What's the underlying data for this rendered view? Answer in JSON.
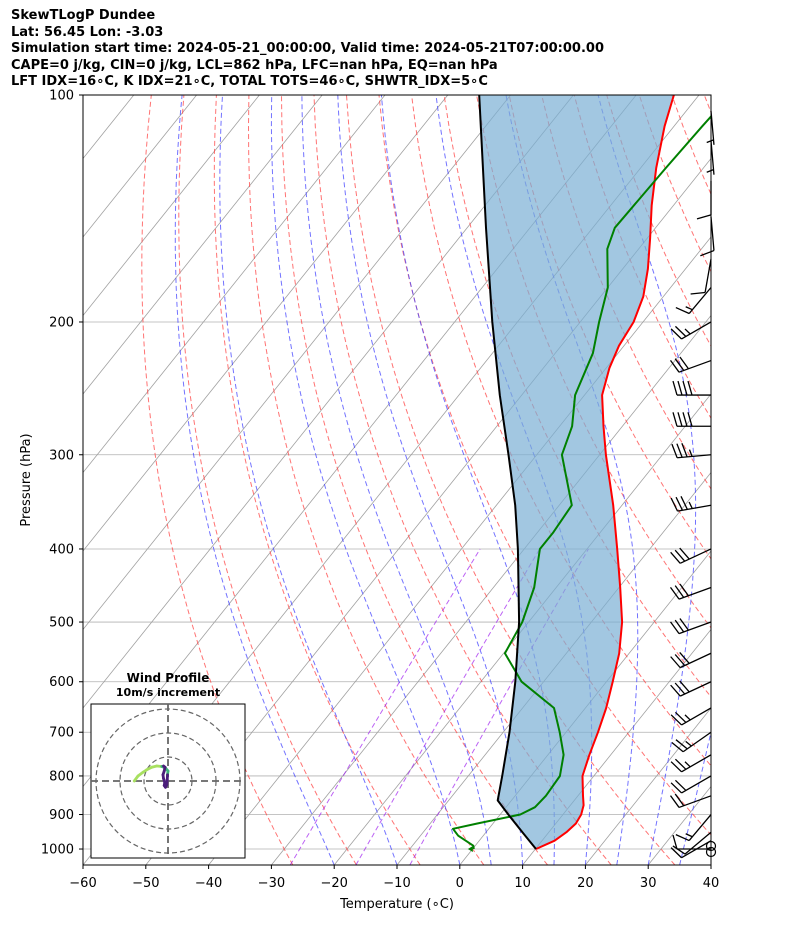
{
  "header": {
    "line1": "SkewTLogP Dundee",
    "line2": "Lat: 56.45   Lon: -3.03",
    "line3": "Simulation start time: 2024-05-21_00:00:00, Valid time: 2024-05-21T07:00:00.00",
    "line4": "CAPE=0 j/kg, CIN=0 j/kg, LCL=862 hPa, LFC=nan hPa, EQ=nan hPa",
    "line5": "LFT IDX=16∘C, K IDX=21∘C, TOTAL TOTS=46∘C, SHWTR_IDX=5∘C"
  },
  "chart_data": [
    {
      "type": "line",
      "subtype": "skew-T log-P",
      "xlabel": "Temperature (∘C)",
      "ylabel": "Pressure (hPa)",
      "xlim": [
        -60,
        40
      ],
      "ylim": [
        1050,
        100
      ],
      "y_scale": "log",
      "grid": true,
      "x_ticks": [
        -60,
        -50,
        -40,
        -30,
        -20,
        -10,
        0,
        10,
        20,
        30,
        40
      ],
      "y_ticks": [
        1000,
        900,
        800,
        700,
        600,
        500,
        400,
        300,
        200,
        100
      ],
      "colors": {
        "temperature": "#ff0000",
        "dewpoint": "#008000",
        "parcel": "#000000",
        "cape_fill": "#7bafd4",
        "dry_adiabats": "#ff4444",
        "moist_adiabats": "#4444ff",
        "mixing_ratio": "#a020f0",
        "isotherms": "#999999"
      },
      "series": [
        {
          "role": "temperature",
          "points": [
            [
              1000,
              10.1
            ],
            [
              975,
              12.0
            ],
            [
              950,
              12.8
            ],
            [
              925,
              13.2
            ],
            [
              900,
              12.9
            ],
            [
              875,
              12.1
            ],
            [
              850,
              10.8
            ],
            [
              800,
              8.2
            ],
            [
              750,
              6.6
            ],
            [
              700,
              5.1
            ],
            [
              650,
              3.3
            ],
            [
              600,
              1.0
            ],
            [
              550,
              -1.6
            ],
            [
              500,
              -5.1
            ],
            [
              450,
              -9.8
            ],
            [
              400,
              -15.2
            ],
            [
              350,
              -21.4
            ],
            [
              300,
              -29.0
            ],
            [
              275,
              -33.0
            ],
            [
              250,
              -37.2
            ],
            [
              230,
              -39.5
            ],
            [
              215,
              -40.8
            ],
            [
              200,
              -41.5
            ],
            [
              185,
              -43.2
            ],
            [
              170,
              -46.0
            ],
            [
              155,
              -49.5
            ],
            [
              140,
              -53.5
            ],
            [
              125,
              -57.5
            ],
            [
              110,
              -61.5
            ],
            [
              100,
              -64.0
            ]
          ]
        },
        {
          "role": "dewpoint",
          "points": [
            [
              1000,
              0.2
            ],
            [
              990,
              -0.3
            ],
            [
              960,
              -4.0
            ],
            [
              940,
              -5.7
            ],
            [
              925,
              -2.5
            ],
            [
              900,
              3.2
            ],
            [
              880,
              4.6
            ],
            [
              850,
              4.9
            ],
            [
              800,
              4.6
            ],
            [
              750,
              2.5
            ],
            [
              700,
              -1.0
            ],
            [
              650,
              -5.0
            ],
            [
              600,
              -13.5
            ],
            [
              550,
              -19.8
            ],
            [
              500,
              -21.0
            ],
            [
              450,
              -23.5
            ],
            [
              400,
              -27.5
            ],
            [
              380,
              -27.5
            ],
            [
              350,
              -28.0
            ],
            [
              300,
              -36.0
            ],
            [
              275,
              -38.0
            ],
            [
              250,
              -41.5
            ],
            [
              220,
              -44.0
            ],
            [
              200,
              -47.0
            ],
            [
              180,
              -50.0
            ],
            [
              160,
              -55.0
            ],
            [
              150,
              -56.5
            ],
            [
              125,
              -56.0
            ],
            [
              110,
              -55.5
            ],
            [
              100,
              -55.0
            ]
          ]
        },
        {
          "role": "parcel",
          "points": [
            [
              1000,
              10.1
            ],
            [
              950,
              5.8
            ],
            [
              900,
              1.3
            ],
            [
              862,
              -2.2
            ],
            [
              800,
              -4.6
            ],
            [
              700,
              -9.0
            ],
            [
              600,
              -14.5
            ],
            [
              500,
              -21.5
            ],
            [
              400,
              -31.0
            ],
            [
              350,
              -37.0
            ],
            [
              300,
              -44.5
            ],
            [
              250,
              -53.5
            ],
            [
              200,
              -64.0
            ],
            [
              150,
              -77.0
            ],
            [
              100,
              -95.0
            ]
          ]
        }
      ],
      "wind_barbs": [
        {
          "p": 1000,
          "speed_kt": 10,
          "dir": 270
        },
        {
          "p": 975,
          "speed_kt": 10,
          "dir": 240
        },
        {
          "p": 950,
          "speed_kt": 10,
          "dir": 230
        },
        {
          "p": 900,
          "speed_kt": 15,
          "dir": 220
        },
        {
          "p": 850,
          "speed_kt": 20,
          "dir": 250
        },
        {
          "p": 800,
          "speed_kt": 20,
          "dir": 240
        },
        {
          "p": 750,
          "speed_kt": 25,
          "dir": 240
        },
        {
          "p": 700,
          "speed_kt": 25,
          "dir": 235
        },
        {
          "p": 650,
          "speed_kt": 25,
          "dir": 240
        },
        {
          "p": 600,
          "speed_kt": 30,
          "dir": 245
        },
        {
          "p": 550,
          "speed_kt": 30,
          "dir": 245
        },
        {
          "p": 500,
          "speed_kt": 30,
          "dir": 250
        },
        {
          "p": 450,
          "speed_kt": 30,
          "dir": 250
        },
        {
          "p": 400,
          "speed_kt": 30,
          "dir": 245
        },
        {
          "p": 350,
          "speed_kt": 35,
          "dir": 260
        },
        {
          "p": 300,
          "speed_kt": 35,
          "dir": 265
        },
        {
          "p": 275,
          "speed_kt": 40,
          "dir": 270
        },
        {
          "p": 250,
          "speed_kt": 40,
          "dir": 270
        },
        {
          "p": 225,
          "speed_kt": 30,
          "dir": 250
        },
        {
          "p": 200,
          "speed_kt": 25,
          "dir": 240
        },
        {
          "p": 180,
          "speed_kt": 15,
          "dir": 220
        },
        {
          "p": 165,
          "speed_kt": 10,
          "dir": 190
        },
        {
          "p": 145,
          "speed_kt": 10,
          "dir": 175
        },
        {
          "p": 130,
          "speed_kt": 10,
          "dir": 180
        },
        {
          "p": 115,
          "speed_kt": 5,
          "dir": 175
        },
        {
          "p": 105,
          "speed_kt": 5,
          "dir": 175
        }
      ]
    },
    {
      "type": "line",
      "subtype": "hodograph",
      "title": "Wind Profile",
      "subtitle": "10m/s increment",
      "grid": true,
      "ring_increment": 10,
      "rings": 3,
      "colors": {
        "low": "#a8e060",
        "mid": "#3fb37a",
        "high": "#4b1e7a",
        "rings": "#666666"
      },
      "points": [
        [
          -13.5,
          2.0
        ],
        [
          -12.0,
          4.0
        ],
        [
          -10.0,
          5.5
        ],
        [
          -8.5,
          6.5
        ],
        [
          -6.5,
          7.5
        ],
        [
          -4.5,
          8.0
        ],
        [
          -2.5,
          7.8
        ],
        [
          -1.0,
          7.2
        ],
        [
          0.0,
          6.0
        ],
        [
          -0.2,
          4.5
        ],
        [
          -0.3,
          2.5
        ],
        [
          -0.5,
          0.5
        ],
        [
          -1.0,
          -0.5
        ],
        [
          -1.5,
          0.2
        ],
        [
          -1.3,
          1.5
        ],
        [
          -1.8,
          3.0
        ],
        [
          -2.0,
          4.5
        ],
        [
          -1.5,
          6.0
        ],
        [
          -1.2,
          7.5
        ],
        [
          -1.8,
          8.0
        ]
      ]
    }
  ]
}
